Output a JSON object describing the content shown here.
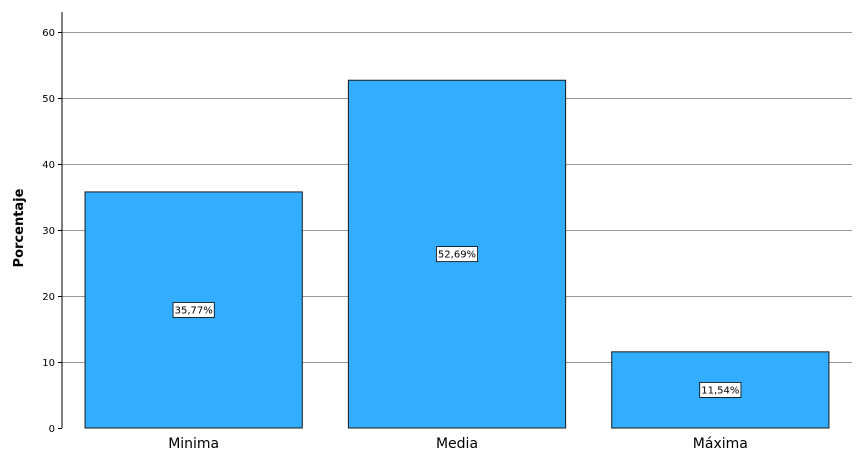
{
  "chart_data": {
    "type": "bar",
    "categories": [
      "Minima",
      "Media",
      "Máxima"
    ],
    "values": [
      35.77,
      52.69,
      11.54
    ],
    "data_labels": [
      "35,77%",
      "52,69%",
      "11,54%"
    ],
    "ylabel": "Porcentaje",
    "ylim": [
      0,
      60
    ],
    "yticks": [
      "0",
      "10",
      "20",
      "30",
      "40",
      "50",
      "60"
    ],
    "grid": true,
    "colors": {
      "bar": "#33adff",
      "bar_stroke": "#1a1a1a",
      "grid": "#999999"
    }
  }
}
